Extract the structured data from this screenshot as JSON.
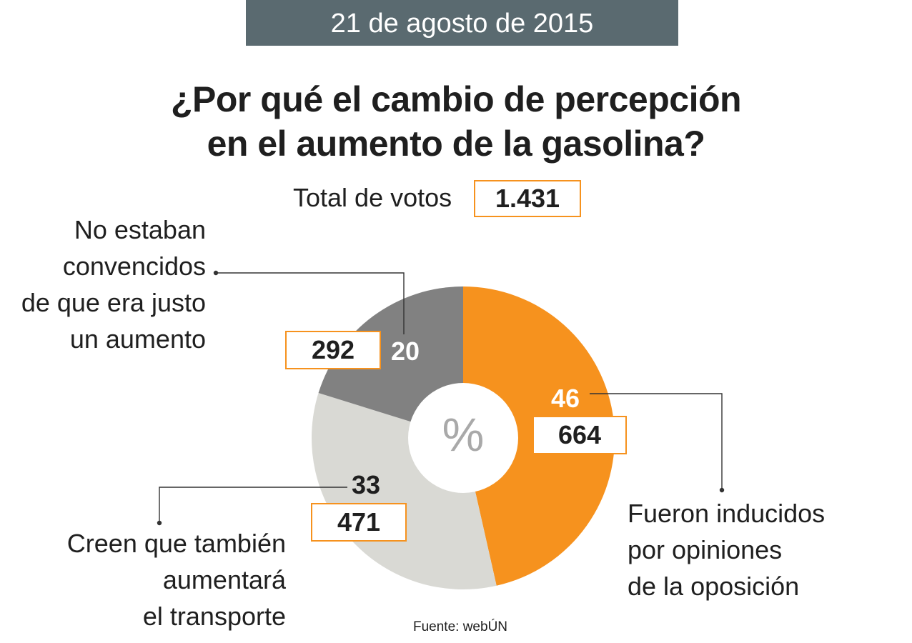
{
  "date_banner": "21 de agosto de 2015",
  "title_line1": "¿Por qué el cambio de percepción",
  "title_line2": "en el aumento de la gasolina?",
  "total_label": "Total de votos",
  "total_value": "1.431",
  "center_symbol": "%",
  "source": "Fuente: webÚN",
  "colors": {
    "orange": "#f6921e",
    "gray": "#818181",
    "light": "#d9d9d4",
    "banner": "#5a6a70",
    "box_border": "#f6921e"
  },
  "chart_data": {
    "type": "pie",
    "title": "¿Por qué el cambio de percepción en el aumento de la gasolina?",
    "total": 1431,
    "unit": "%",
    "slices": [
      {
        "name": "Fueron inducidos por opiniones de la oposición",
        "label_lines": [
          "Fueron inducidos",
          "por opiniones",
          "de la oposición"
        ],
        "percent": 46,
        "percent_text": "46",
        "count": 664,
        "count_text": "664",
        "color": "#f6921e"
      },
      {
        "name": "Creen que también aumentará el transporte",
        "label_lines": [
          "Creen que también",
          "aumentará",
          "el transporte"
        ],
        "percent": 33,
        "percent_text": "33",
        "count": 471,
        "count_text": "471",
        "color": "#d9d9d4"
      },
      {
        "name": "No estaban convencidos de que era justo un aumento",
        "label_lines": [
          "No estaban",
          "convencidos",
          "de que era justo",
          "un aumento"
        ],
        "percent": 20,
        "percent_text": "20",
        "count": 292,
        "count_text": "292",
        "color": "#818181"
      }
    ]
  }
}
